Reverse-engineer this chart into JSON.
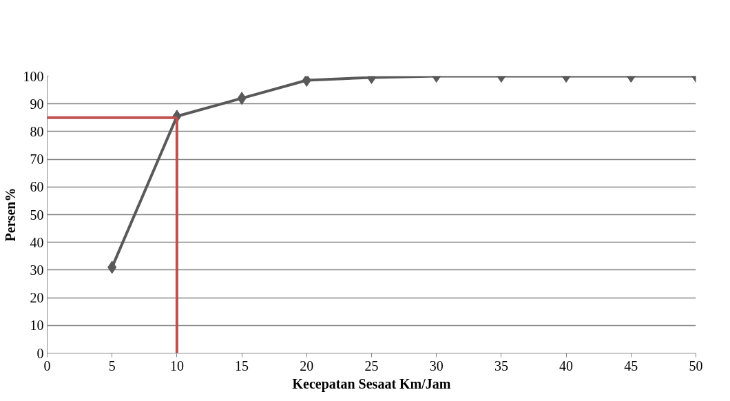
{
  "chart_data": {
    "type": "line",
    "xlabel": "Kecepatan Sesaat Km/Jam",
    "ylabel": "Persen%",
    "x": [
      5,
      10,
      15,
      20,
      25,
      30,
      35,
      40,
      45,
      50
    ],
    "series": [
      {
        "color": "#595959",
        "values": [
          31,
          85.5,
          92,
          98.5,
          99.5,
          100,
          100,
          100,
          100,
          100
        ]
      }
    ],
    "xlim": [
      0,
      50
    ],
    "xticks": [
      0,
      5,
      10,
      15,
      20,
      25,
      30,
      35,
      40,
      45,
      50
    ],
    "ylim": [
      0,
      100
    ],
    "yticks": [
      0,
      10,
      20,
      30,
      40,
      50,
      60,
      70,
      80,
      90,
      100
    ],
    "grid": "y",
    "marker": "diamond",
    "line_style": "solid",
    "ref_lines": [
      {
        "axis": "y",
        "value": 85,
        "color": "#c0504d"
      },
      {
        "axis": "x",
        "value": 10,
        "color": "#c0504d"
      }
    ]
  }
}
